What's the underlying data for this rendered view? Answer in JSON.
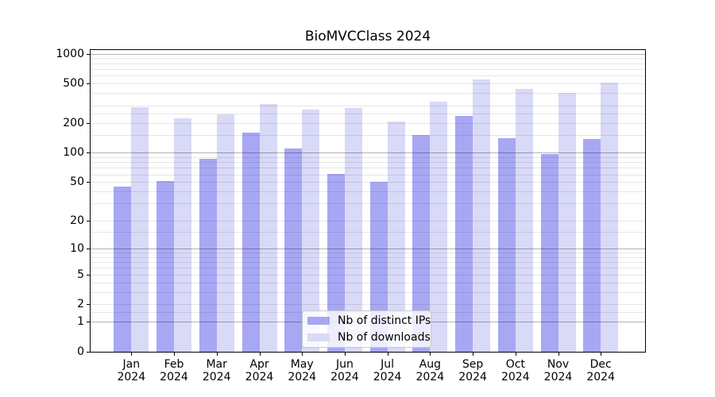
{
  "title": "BioMVCClass 2024",
  "chart_data": {
    "type": "bar",
    "title": "BioMVCClass 2024",
    "categories": [
      "Jan 2024",
      "Feb 2024",
      "Mar 2024",
      "Apr 2024",
      "May 2024",
      "Jun 2024",
      "Jul 2024",
      "Aug 2024",
      "Sep 2024",
      "Oct 2024",
      "Nov 2024",
      "Dec 2024"
    ],
    "series": [
      {
        "name": "Nb of distinct IPs",
        "color": "#a7a7f4",
        "values": [
          45,
          51,
          87,
          160,
          111,
          61,
          50,
          150,
          235,
          140,
          96,
          137
        ]
      },
      {
        "name": "Nb of downloads",
        "color": "#d9d9f8",
        "values": [
          287,
          224,
          243,
          310,
          273,
          282,
          209,
          328,
          551,
          442,
          401,
          510
        ]
      }
    ],
    "xlabel": "",
    "ylabel": "",
    "yscale": "log1p",
    "ylim": [
      0,
      1089
    ],
    "yticks": [
      0,
      1,
      2,
      5,
      10,
      20,
      50,
      100,
      200,
      500,
      1000
    ],
    "major_gridlines": [
      1,
      10,
      100,
      1000
    ],
    "minor_gridlines": [
      1.5,
      2,
      3,
      4,
      5,
      6,
      7,
      8,
      9,
      15,
      20,
      30,
      40,
      50,
      60,
      70,
      80,
      90,
      150,
      200,
      250,
      300,
      400,
      500,
      600,
      700,
      800,
      900
    ],
    "grid": true,
    "legend_position": "lower center inside"
  },
  "legend": {
    "items": [
      {
        "label": "Nb of distinct IPs",
        "color": "#a7a7f4"
      },
      {
        "label": "Nb of downloads",
        "color": "#d9d9f8"
      }
    ]
  },
  "colors": {
    "background": "#ffffff",
    "axis": "#000000",
    "text": "#000000",
    "major_grid": "#b3b3b3",
    "minor_grid": "#e7e7e7",
    "bar_dark": "#a7a7f4",
    "bar_light": "#d9d9f8"
  }
}
